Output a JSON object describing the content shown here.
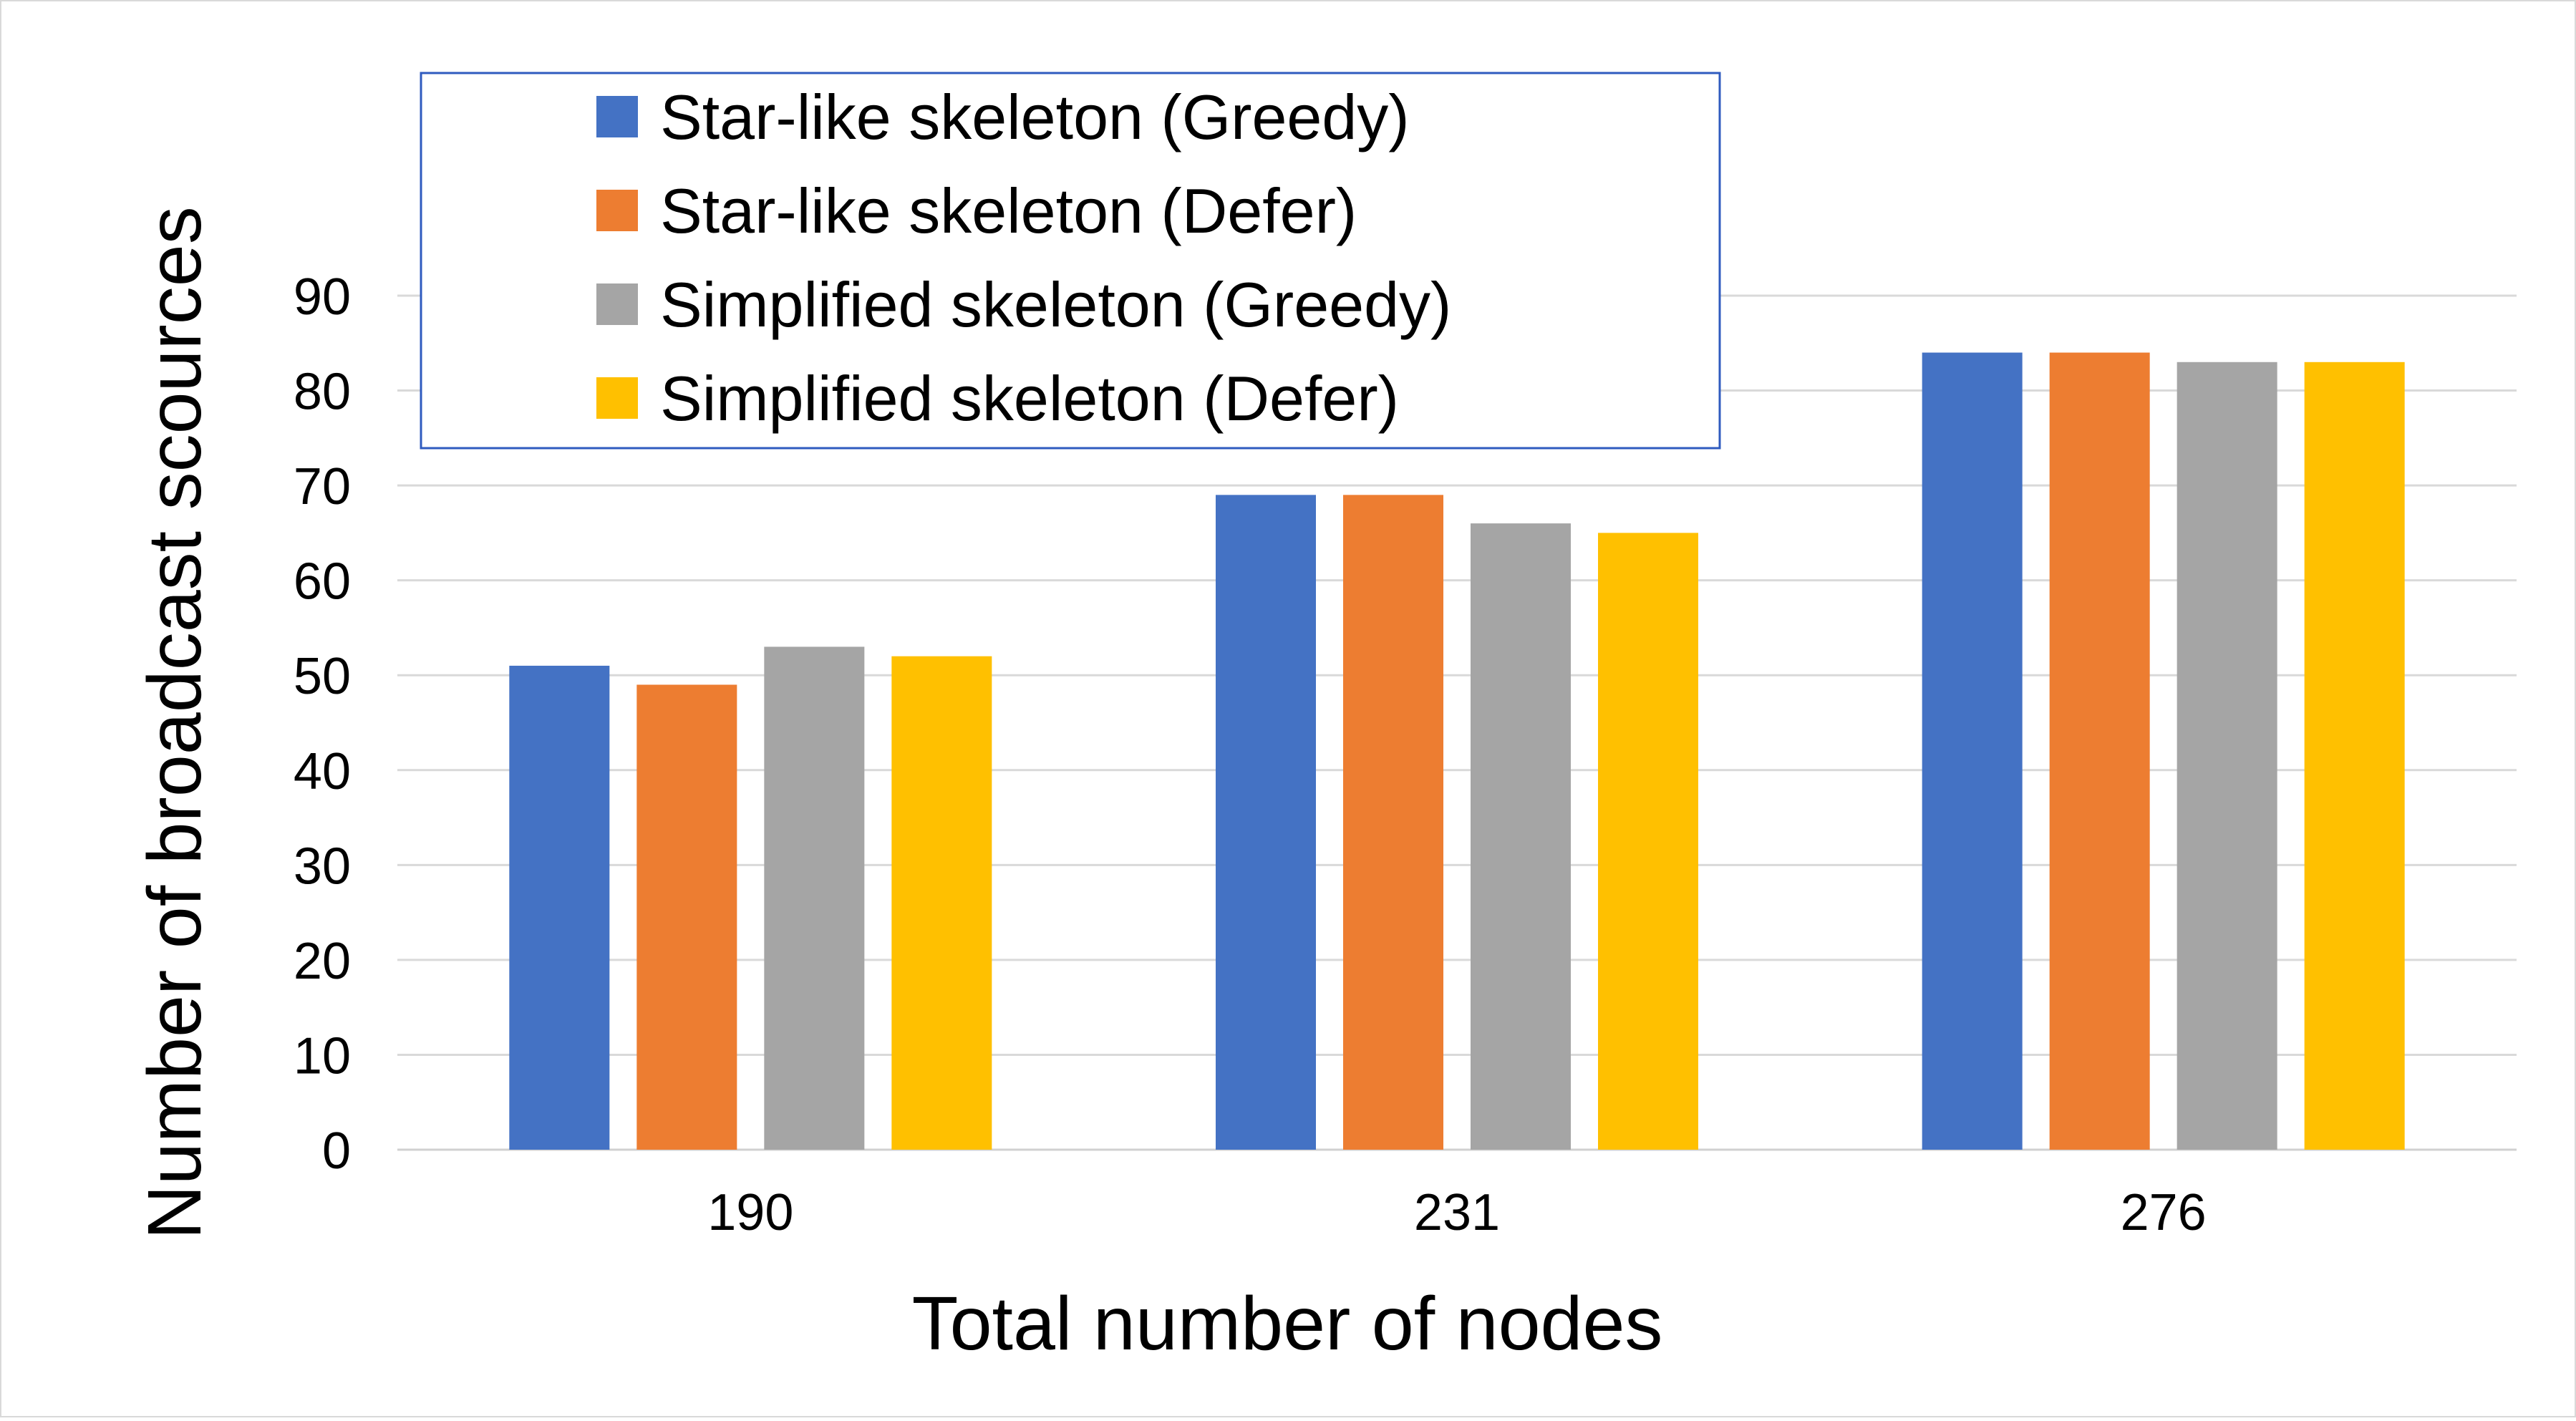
{
  "chart_data": {
    "type": "bar",
    "xlabel": "Total number of nodes",
    "ylabel": "Number of broadcast scources",
    "categories": [
      "190",
      "231",
      "276"
    ],
    "ylim": [
      0,
      90
    ],
    "yticks": [
      0,
      10,
      20,
      30,
      40,
      50,
      60,
      70,
      80,
      90
    ],
    "grid": true,
    "legend_position": "top-left",
    "series": [
      {
        "name": "Star-like skeleton (Greedy)",
        "color": "#4472C4",
        "values": [
          51,
          69,
          84
        ]
      },
      {
        "name": "Star-like skeleton (Defer)",
        "color": "#ED7D31",
        "values": [
          49,
          69,
          84
        ]
      },
      {
        "name": "Simplified skeleton (Greedy)",
        "color": "#A5A5A5",
        "values": [
          53,
          66,
          83
        ]
      },
      {
        "name": "Simplified skeleton (Defer)",
        "color": "#FFC000",
        "values": [
          52,
          65,
          83
        ]
      }
    ]
  }
}
